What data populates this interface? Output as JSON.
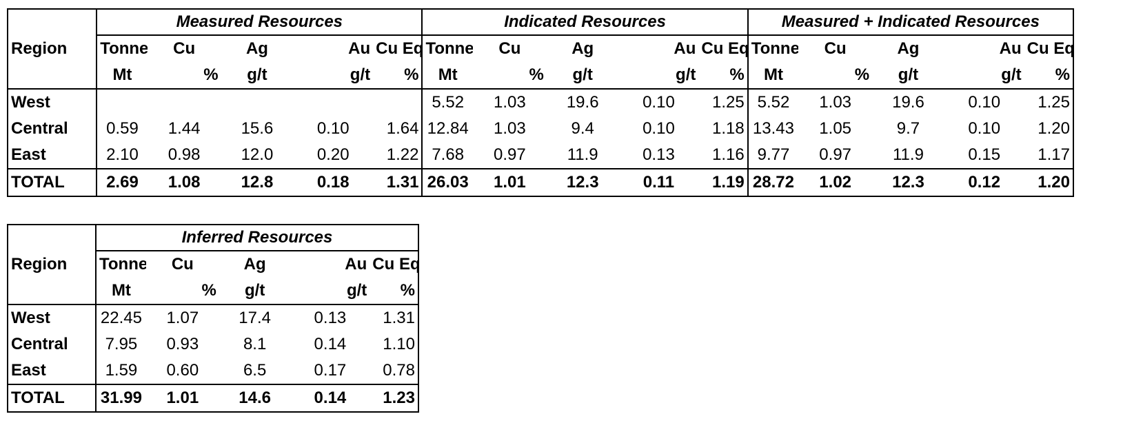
{
  "main_table": {
    "region_header": "Region",
    "groups": [
      "Measured Resources",
      "Indicated Resources",
      "Measured + Indicated Resources"
    ],
    "col_headers_top": [
      "Tonnes",
      "Cu",
      "Ag",
      "Au",
      "Cu Eq"
    ],
    "col_headers_units": [
      "Mt",
      "%",
      "g/t",
      "g/t",
      "%"
    ],
    "rows": [
      {
        "region": "West",
        "measured": [
          "",
          "",
          "",
          "",
          ""
        ],
        "indicated": [
          "5.52",
          "1.03",
          "19.6",
          "0.10",
          "1.25"
        ],
        "combined": [
          "5.52",
          "1.03",
          "19.6",
          "0.10",
          "1.25"
        ]
      },
      {
        "region": "Central",
        "measured": [
          "0.59",
          "1.44",
          "15.6",
          "0.10",
          "1.64"
        ],
        "indicated": [
          "12.84",
          "1.03",
          "9.4",
          "0.10",
          "1.18"
        ],
        "combined": [
          "13.43",
          "1.05",
          "9.7",
          "0.10",
          "1.20"
        ]
      },
      {
        "region": "East",
        "measured": [
          "2.10",
          "0.98",
          "12.0",
          "0.20",
          "1.22"
        ],
        "indicated": [
          "7.68",
          "0.97",
          "11.9",
          "0.13",
          "1.16"
        ],
        "combined": [
          "9.77",
          "0.97",
          "11.9",
          "0.15",
          "1.17"
        ]
      }
    ],
    "total": {
      "region": "TOTAL",
      "measured": [
        "2.69",
        "1.08",
        "12.8",
        "0.18",
        "1.31"
      ],
      "indicated": [
        "26.03",
        "1.01",
        "12.3",
        "0.11",
        "1.19"
      ],
      "combined": [
        "28.72",
        "1.02",
        "12.3",
        "0.12",
        "1.20"
      ]
    }
  },
  "inferred_table": {
    "region_header": "Region",
    "group": "Inferred Resources",
    "col_headers_top": [
      "Tonnes",
      "Cu",
      "Ag",
      "Au",
      "Cu Eq"
    ],
    "col_headers_units": [
      "Mt",
      "%",
      "g/t",
      "g/t",
      "%"
    ],
    "rows": [
      {
        "region": "West",
        "values": [
          "22.45",
          "1.07",
          "17.4",
          "0.13",
          "1.31"
        ]
      },
      {
        "region": "Central",
        "values": [
          "7.95",
          "0.93",
          "8.1",
          "0.14",
          "1.10"
        ]
      },
      {
        "region": "East",
        "values": [
          "1.59",
          "0.60",
          "6.5",
          "0.17",
          "0.78"
        ]
      }
    ],
    "total": {
      "region": "TOTAL",
      "values": [
        "31.99",
        "1.01",
        "14.6",
        "0.14",
        "1.23"
      ]
    }
  }
}
